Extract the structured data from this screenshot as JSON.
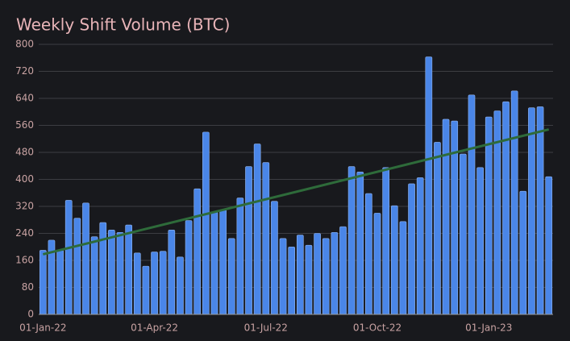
{
  "chart_data": {
    "type": "bar",
    "title": "Weekly Shift Volume (BTC)",
    "categories": [
      "01-Jan-22",
      null,
      null,
      null,
      null,
      null,
      null,
      null,
      null,
      null,
      null,
      null,
      null,
      "01-Apr-22",
      null,
      null,
      null,
      null,
      null,
      null,
      null,
      null,
      null,
      null,
      null,
      null,
      "01-Jul-22",
      null,
      null,
      null,
      null,
      null,
      null,
      null,
      null,
      null,
      null,
      null,
      null,
      "01-Oct-22",
      null,
      null,
      null,
      null,
      null,
      null,
      null,
      null,
      null,
      null,
      null,
      null,
      "01-Jan-23",
      null,
      null,
      null,
      null,
      null,
      null,
      null
    ],
    "values": [
      190,
      220,
      190,
      338,
      285,
      330,
      230,
      272,
      250,
      243,
      265,
      182,
      143,
      185,
      187,
      250,
      170,
      278,
      372,
      540,
      303,
      310,
      225,
      345,
      438,
      505,
      450,
      335,
      225,
      200,
      235,
      205,
      240,
      225,
      243,
      260,
      438,
      422,
      358,
      300,
      435,
      322,
      275,
      387,
      405,
      763,
      510,
      578,
      573,
      475,
      650,
      435,
      585,
      603,
      630,
      662,
      365,
      612,
      615,
      408
    ],
    "color": "#4a86e8",
    "trend_line": {
      "color": "#2e6b3a",
      "values": [
        178,
        548
      ]
    },
    "ylim": [
      0,
      800
    ],
    "yticks": [
      0,
      80,
      160,
      240,
      320,
      400,
      480,
      560,
      640,
      720,
      800
    ],
    "grid": true
  }
}
